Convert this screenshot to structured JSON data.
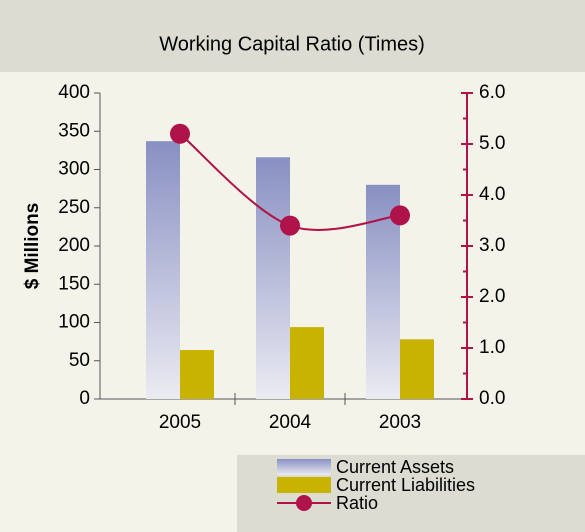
{
  "chart_data": {
    "type": "bar",
    "title": "Working Capital Ratio (Times)",
    "y_label": "$ Millions",
    "categories": [
      "2005",
      "2004",
      "2003"
    ],
    "series": [
      {
        "name": "Current Assets",
        "color": "#8890c2",
        "values": [
          337,
          316,
          280
        ]
      },
      {
        "name": "Current Liabilities",
        "color": "#c8b400",
        "values": [
          64,
          94,
          78
        ]
      },
      {
        "name": "Ratio",
        "color": "#b0124a",
        "axis": "y2",
        "type": "line",
        "values": [
          5.2,
          3.4,
          3.6
        ]
      }
    ],
    "ylim": [
      0,
      400
    ],
    "yticks": [
      0,
      50,
      100,
      150,
      200,
      250,
      300,
      350,
      400
    ],
    "y2lim": [
      0,
      6
    ],
    "y2ticks": [
      {
        "value": 0,
        "label": "0.0"
      },
      {
        "value": 1,
        "label": "1.0"
      },
      {
        "value": 2,
        "label": "2.0"
      },
      {
        "value": 3,
        "label": "3.0"
      },
      {
        "value": 4,
        "label": "4.0"
      },
      {
        "value": 5,
        "label": "5.0"
      },
      {
        "value": 6,
        "label": "6.0"
      }
    ],
    "legend": "bottom-right"
  }
}
